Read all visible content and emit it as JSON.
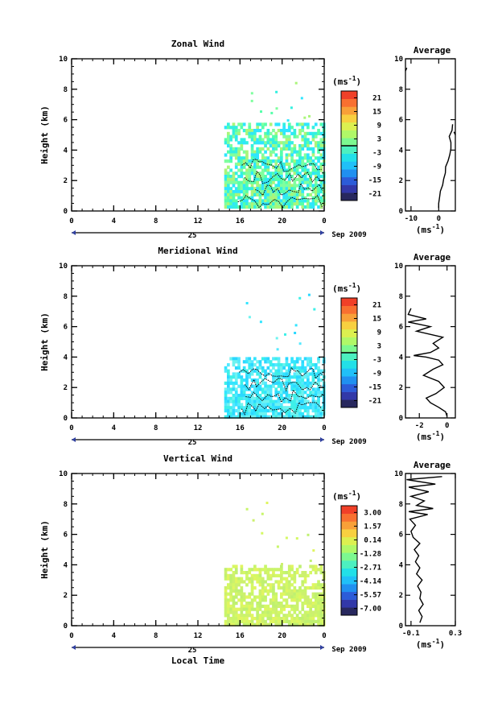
{
  "xlabel": "Local Time",
  "date_label": "Sep 2009",
  "day_label": "25",
  "avg_title": "Average",
  "unit_label": "(ms",
  "unit_exp": "-1",
  "unit_close": ")",
  "chart_data": [
    {
      "type": "heatmap",
      "title": "Zonal Wind",
      "ylabel": "Height (km)",
      "xlim": [
        0,
        24
      ],
      "ylim": [
        0,
        10
      ],
      "x_ticks": [
        "0",
        "4",
        "8",
        "12",
        "16",
        "20",
        "0"
      ],
      "y_ticks": [
        "0",
        "2",
        "4",
        "6",
        "8",
        "10"
      ],
      "data_x_range": [
        14.5,
        24
      ],
      "data_y_range": [
        0.3,
        5.8
      ],
      "colorbar": {
        "ticks": [
          "21",
          "15",
          "9",
          "3",
          "-3",
          "-9",
          "-15",
          "-21"
        ],
        "range": [
          -24,
          24
        ],
        "zero_line": true
      },
      "fill_colors": [
        "#7fff9f",
        "#aaf57a",
        "#55ffaa",
        "#33f0e0",
        "#2ee6ff"
      ],
      "contour_level": 0,
      "average_profile": {
        "xlim": [
          -12,
          6
        ],
        "x_ticks": [
          "-10",
          "0"
        ],
        "ylim": [
          0,
          10
        ],
        "y_ticks": [
          "0",
          "2",
          "4",
          "6",
          "8",
          "10"
        ],
        "points": [
          [
            0,
            0.2
          ],
          [
            0,
            0.5
          ],
          [
            0.3,
            0.9
          ],
          [
            0.6,
            1.3
          ],
          [
            1.4,
            1.7
          ],
          [
            1.8,
            2.1
          ],
          [
            2.4,
            2.5
          ],
          [
            2.5,
            2.9
          ],
          [
            3.4,
            3.3
          ],
          [
            4,
            3.7
          ],
          [
            4.4,
            4.1
          ],
          [
            4.4,
            4.5
          ],
          [
            3.8,
            4.9
          ],
          [
            4.8,
            5.3
          ],
          [
            5,
            5.7
          ]
        ],
        "extra_segments": [
          [
            [
              5.5,
              5.2
            ],
            [
              6,
              5.0
            ]
          ],
          [
            [
              -12,
              9.2
            ],
            [
              -11.5,
              9.4
            ]
          ]
        ]
      }
    },
    {
      "type": "heatmap",
      "title": "Meridional Wind",
      "ylabel": "Height (km)",
      "xlim": [
        0,
        24
      ],
      "ylim": [
        0,
        10
      ],
      "x_ticks": [
        "0",
        "4",
        "8",
        "12",
        "16",
        "20",
        "0"
      ],
      "y_ticks": [
        "0",
        "2",
        "4",
        "6",
        "8",
        "10"
      ],
      "data_x_range": [
        14.5,
        24
      ],
      "data_y_range": [
        0.1,
        4.0
      ],
      "colorbar": {
        "ticks": [
          "21",
          "15",
          "9",
          "3",
          "-3",
          "-9",
          "-15",
          "-21"
        ],
        "range": [
          -24,
          24
        ],
        "zero_line": true
      },
      "fill_colors": [
        "#3ef0e8",
        "#33e5ff",
        "#55e9ff",
        "#6ef3f0",
        "#2bd8ff"
      ],
      "contour_level": 0,
      "average_profile": {
        "xlim": [
          -3,
          0.6
        ],
        "x_ticks": [
          "-2",
          "0"
        ],
        "ylim": [
          0,
          10
        ],
        "y_ticks": [
          "0",
          "2",
          "4",
          "6",
          "8",
          "10"
        ],
        "points": [
          [
            0,
            0.1
          ],
          [
            -0.1,
            0.4
          ],
          [
            -0.6,
            0.7
          ],
          [
            -1.2,
            1.0
          ],
          [
            -1.5,
            1.3
          ],
          [
            -0.8,
            1.6
          ],
          [
            -0.2,
            2.0
          ],
          [
            -0.6,
            2.4
          ],
          [
            -1.7,
            2.8
          ],
          [
            -1.0,
            3.2
          ],
          [
            -0.3,
            3.5
          ],
          [
            -0.6,
            3.8
          ],
          [
            -1.5,
            4.0
          ],
          [
            -2.4,
            4.1
          ],
          [
            -1.2,
            4.3
          ],
          [
            -0.6,
            4.6
          ],
          [
            -1.0,
            4.9
          ],
          [
            -0.3,
            5.3
          ],
          [
            -2.2,
            5.7
          ],
          [
            -1.2,
            6.0
          ],
          [
            -2.8,
            6.3
          ],
          [
            -1.5,
            6.5
          ],
          [
            -2.8,
            6.8
          ],
          [
            -2.6,
            7.2
          ]
        ]
      }
    },
    {
      "type": "heatmap",
      "title": "Vertical Wind",
      "ylabel": "Height (km)",
      "xlim": [
        0,
        24
      ],
      "ylim": [
        0,
        10
      ],
      "x_ticks": [
        "0",
        "4",
        "8",
        "12",
        "16",
        "20",
        "0"
      ],
      "y_ticks": [
        "0",
        "2",
        "4",
        "6",
        "8",
        "10"
      ],
      "data_x_range": [
        14.5,
        24
      ],
      "data_y_range": [
        0.1,
        4.0
      ],
      "colorbar": {
        "ticks": [
          "3.00",
          "1.57",
          "0.14",
          "-1.28",
          "-2.71",
          "-4.14",
          "-5.57",
          "-7.00"
        ],
        "range": [
          -7.7,
          3.7
        ],
        "zero_line": false
      },
      "fill_colors": [
        "#c8f56a",
        "#d4f864",
        "#bff070",
        "#e0f560",
        "#cdf06e"
      ],
      "contour_level": null,
      "average_profile": {
        "xlim": [
          -0.15,
          0.3
        ],
        "x_ticks": [
          "-0.1",
          "0.3"
        ],
        "ylim": [
          0,
          10
        ],
        "y_ticks": [
          "0",
          "2",
          "4",
          "6",
          "8",
          "10"
        ],
        "points": [
          [
            -0.02,
            0.2
          ],
          [
            0.0,
            0.6
          ],
          [
            -0.03,
            1.0
          ],
          [
            0.01,
            1.4
          ],
          [
            -0.02,
            1.8
          ],
          [
            -0.01,
            2.2
          ],
          [
            -0.04,
            2.6
          ],
          [
            0.0,
            3.0
          ],
          [
            -0.05,
            3.4
          ],
          [
            -0.02,
            3.8
          ],
          [
            -0.06,
            4.2
          ],
          [
            -0.03,
            4.6
          ],
          [
            -0.07,
            5.0
          ],
          [
            -0.02,
            5.4
          ],
          [
            -0.08,
            5.8
          ],
          [
            -0.1,
            6.2
          ],
          [
            -0.06,
            6.6
          ],
          [
            -0.11,
            7.0
          ],
          [
            0.05,
            7.3
          ],
          [
            -0.12,
            7.5
          ],
          [
            0.1,
            7.7
          ],
          [
            -0.05,
            7.9
          ],
          [
            0.02,
            8.2
          ],
          [
            -0.1,
            8.5
          ],
          [
            0.06,
            8.8
          ],
          [
            -0.12,
            9.1
          ],
          [
            0.12,
            9.3
          ],
          [
            -0.14,
            9.6
          ],
          [
            0.18,
            9.8
          ]
        ]
      }
    }
  ]
}
